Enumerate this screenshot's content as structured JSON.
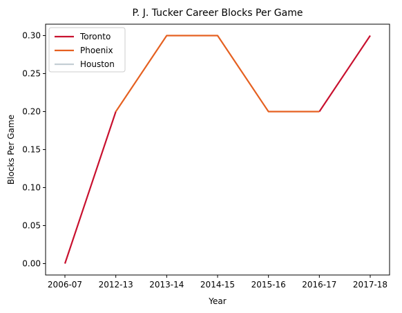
{
  "chart_data": {
    "type": "line",
    "title": "P. J. Tucker Career Blocks Per Game",
    "xlabel": "Year",
    "ylabel": "Blocks Per Game",
    "categories": [
      "2006-07",
      "2012-13",
      "2013-14",
      "2014-15",
      "2015-16",
      "2016-17",
      "2017-18"
    ],
    "yticks": [
      "0.00",
      "0.05",
      "0.10",
      "0.15",
      "0.20",
      "0.25",
      "0.30"
    ],
    "ylim": [
      -0.015,
      0.315
    ],
    "grid": false,
    "legend_position": "top-left",
    "series": [
      {
        "name": "Toronto",
        "color": "#c8102e",
        "values": [
          0.0,
          0.2,
          null,
          null,
          null,
          0.2,
          0.3
        ]
      },
      {
        "name": "Phoenix",
        "color": "#e56020",
        "values": [
          null,
          0.2,
          0.3,
          0.3,
          0.2,
          0.2,
          null
        ]
      },
      {
        "name": "Houston",
        "color": "#c4ced4",
        "values": [
          null,
          null,
          null,
          null,
          null,
          null,
          null
        ]
      }
    ]
  }
}
